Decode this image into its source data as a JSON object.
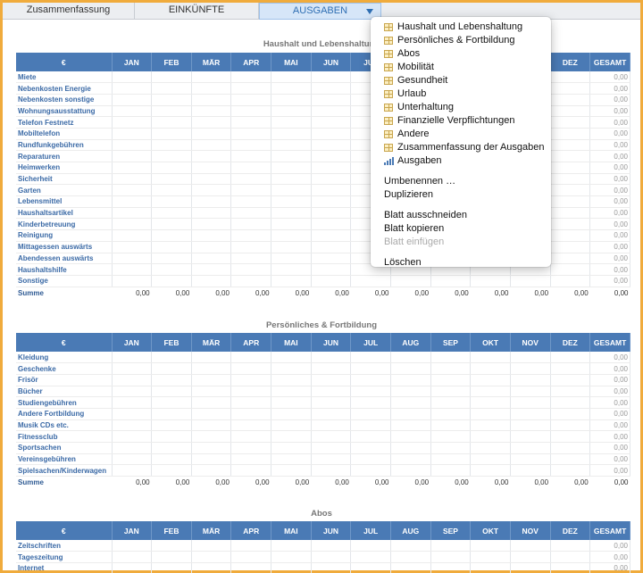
{
  "tabs": [
    "Zusammenfassung",
    "EINKÜNFTE",
    "AUSGABEN"
  ],
  "months": [
    "€",
    "JAN",
    "FEB",
    "MÄR",
    "APR",
    "MAI",
    "JUN",
    "JUL",
    "AUG",
    "SEP",
    "OKT",
    "NOV",
    "DEZ",
    "GESAMT"
  ],
  "zero": "0,00",
  "sum_label": "Summe",
  "sections": [
    {
      "title": "Haushalt und Lebenshaltung",
      "rows": [
        "Miete",
        "Nebenkosten Energie",
        "Nebenkosten sonstige",
        "Wohnungsausstattung",
        "Telefon Festnetz",
        "Mobiltelefon",
        "Rundfunkgebühren",
        "Reparaturen",
        "Heimwerken",
        "Sicherheit",
        "Garten",
        "Lebensmittel",
        "Haushaltsartikel",
        "Kinderbetreuung",
        "Reinigung",
        "Mittagessen auswärts",
        "Abendessen auswärts",
        "Haushaltshilfe",
        "Sonstige"
      ]
    },
    {
      "title": "Persönliches & Fortbildung",
      "rows": [
        "Kleidung",
        "Geschenke",
        "Frisör",
        "Bücher",
        "Studiengebühren",
        "Andere Fortbildung",
        "Musik CDs etc.",
        "Fitnessclub",
        "Sportsachen",
        "Vereinsgebühren",
        "Spielsachen/Kinderwagen"
      ]
    },
    {
      "title": "Abos",
      "rows": [
        "Zeitschriften",
        "Tageszeitung",
        "Internet"
      ]
    }
  ],
  "menu": {
    "sheets": [
      "Haushalt und Lebenshaltung",
      "Persönliches & Fortbildung",
      "Abos",
      "Mobilität",
      "Gesundheit",
      "Urlaub",
      "Unterhaltung",
      "Finanzielle Verpflichtungen",
      "Andere",
      "Zusammenfassung der Ausgaben"
    ],
    "chart_item": "Ausgaben",
    "rename": "Umbenennen …",
    "duplicate": "Duplizieren",
    "cut": "Blatt ausschneiden",
    "copy": "Blatt kopieren",
    "paste": "Blatt einfügen",
    "delete": "Löschen"
  }
}
